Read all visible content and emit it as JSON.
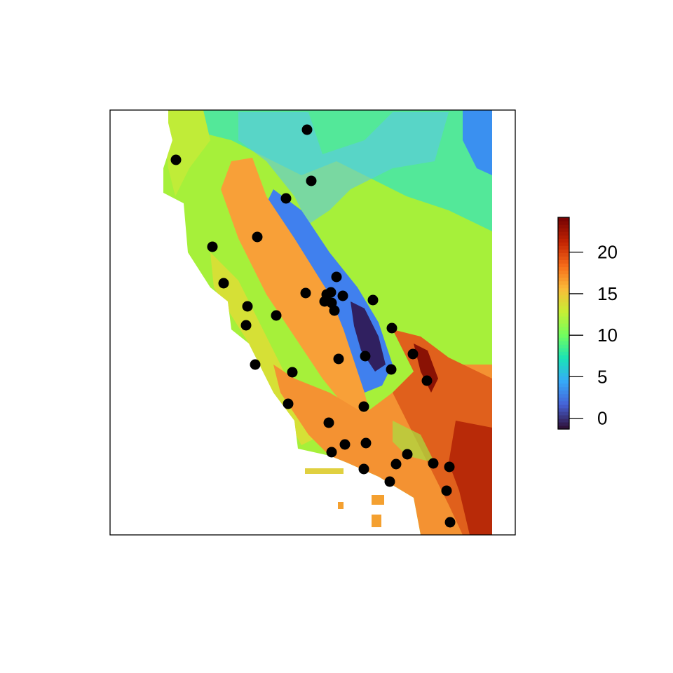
{
  "legend": {
    "ticks": [
      "0",
      "5",
      "10",
      "15",
      "20"
    ],
    "tick_values": [
      0,
      5,
      10,
      15,
      20
    ],
    "range": [
      -1.3,
      24.2
    ],
    "colors": [
      "#30123b",
      "#4662d7",
      "#36aaf9",
      "#1ae4b6",
      "#72fe5e",
      "#c7ef34",
      "#fabb39",
      "#f66b19",
      "#c42503",
      "#7a0403"
    ]
  },
  "map": {
    "point_color": "#000000",
    "point_count": 41
  }
}
